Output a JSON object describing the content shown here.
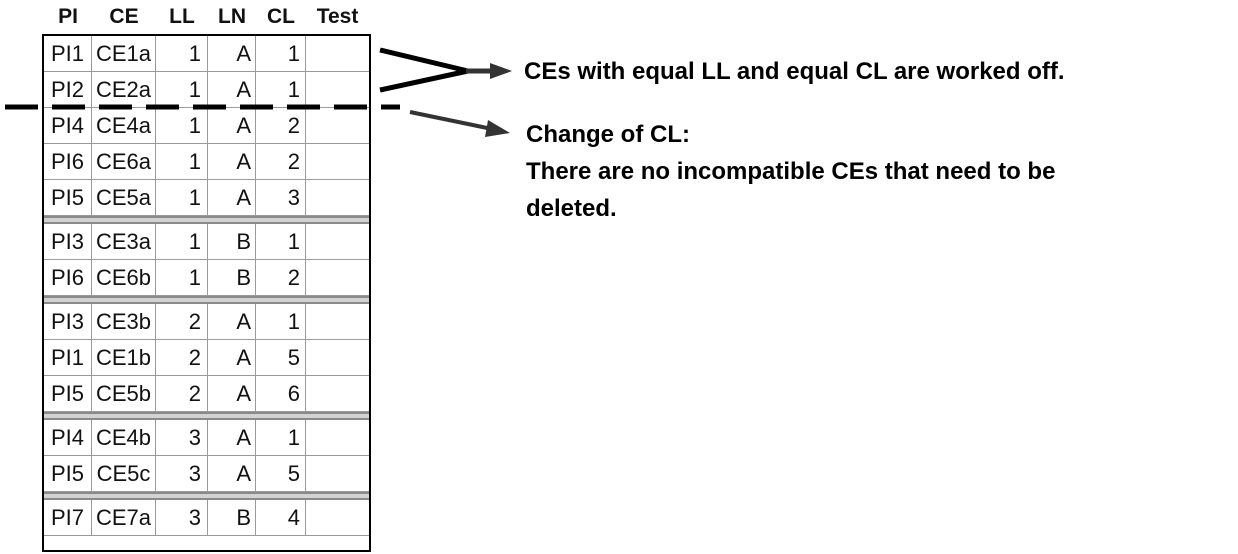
{
  "table": {
    "headers": [
      "PI",
      "CE",
      "LL",
      "LN",
      "CL",
      "Test"
    ],
    "groups": [
      [
        [
          "PI1",
          "CE1a",
          "1",
          "A",
          "1",
          ""
        ],
        [
          "PI2",
          "CE2a",
          "1",
          "A",
          "1",
          ""
        ],
        [
          "PI4",
          "CE4a",
          "1",
          "A",
          "2",
          ""
        ],
        [
          "PI6",
          "CE6a",
          "1",
          "A",
          "2",
          ""
        ],
        [
          "PI5",
          "CE5a",
          "1",
          "A",
          "3",
          ""
        ]
      ],
      [
        [
          "PI3",
          "CE3a",
          "1",
          "B",
          "1",
          ""
        ],
        [
          "PI6",
          "CE6b",
          "1",
          "B",
          "2",
          ""
        ]
      ],
      [
        [
          "PI3",
          "CE3b",
          "2",
          "A",
          "1",
          ""
        ],
        [
          "PI1",
          "CE1b",
          "2",
          "A",
          "5",
          ""
        ],
        [
          "PI5",
          "CE5b",
          "2",
          "A",
          "6",
          ""
        ]
      ],
      [
        [
          "PI4",
          "CE4b",
          "3",
          "A",
          "1",
          ""
        ],
        [
          "PI5",
          "CE5c",
          "3",
          "A",
          "5",
          ""
        ]
      ],
      [
        [
          "PI7",
          "CE7a",
          "3",
          "B",
          "4",
          ""
        ]
      ]
    ]
  },
  "annotations": {
    "first": "CEs with equal LL and equal CL are worked off.",
    "second_lines": [
      "Change of CL:",
      "There are no incompatible CEs that need to be",
      "deleted."
    ]
  },
  "colors": {
    "text": "#000000",
    "grid": "#9a9a9a",
    "separator": "#d2d2d2",
    "arrow": "#333333"
  }
}
